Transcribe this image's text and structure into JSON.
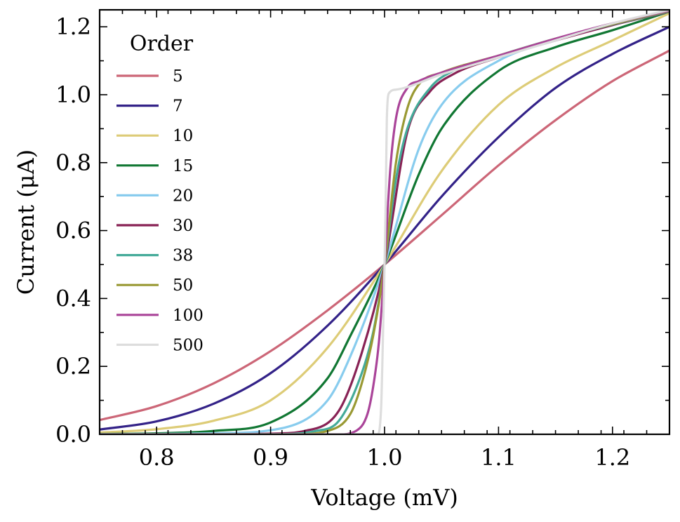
{
  "chart_data": {
    "type": "line",
    "title": "",
    "xlabel": "Voltage (mV)",
    "ylabel": "Current (μA)",
    "xlim": [
      0.75,
      1.25
    ],
    "ylim": [
      0.0,
      1.25
    ],
    "x_ticks": [
      0.8,
      0.9,
      1.0,
      1.1,
      1.2
    ],
    "x_tick_labels": [
      "0.8",
      "0.9",
      "1.0",
      "1.1",
      "1.2"
    ],
    "y_ticks": [
      0.0,
      0.2,
      0.4,
      0.6,
      0.8,
      1.0,
      1.2
    ],
    "y_tick_labels": [
      "0.0",
      "0.2",
      "0.4",
      "0.6",
      "0.8",
      "1.0",
      "1.2"
    ],
    "grid": false,
    "legend": {
      "title": "Order",
      "placement": "top-left"
    },
    "series": [
      {
        "name": "5",
        "color": "#CC6677",
        "x": [
          0.75,
          0.8,
          0.85,
          0.9,
          0.95,
          1.0,
          1.05,
          1.1,
          1.15,
          1.2,
          1.25
        ],
        "y": [
          0.042,
          0.083,
          0.15,
          0.245,
          0.365,
          0.5,
          0.645,
          0.792,
          0.925,
          1.04,
          1.13
        ]
      },
      {
        "name": "7",
        "color": "#332288",
        "x": [
          0.75,
          0.8,
          0.85,
          0.9,
          0.95,
          1.0,
          1.05,
          1.1,
          1.15,
          1.2,
          1.25
        ],
        "y": [
          0.014,
          0.038,
          0.09,
          0.18,
          0.32,
          0.5,
          0.7,
          0.875,
          1.02,
          1.12,
          1.2
        ]
      },
      {
        "name": "10",
        "color": "#DDCC77",
        "x": [
          0.75,
          0.8,
          0.85,
          0.9,
          0.95,
          1.0,
          1.05,
          1.1,
          1.15,
          1.2,
          1.25
        ],
        "y": [
          0.005,
          0.015,
          0.04,
          0.1,
          0.255,
          0.5,
          0.775,
          0.97,
          1.08,
          1.16,
          1.24
        ]
      },
      {
        "name": "15",
        "color": "#117733",
        "x": [
          0.75,
          0.8,
          0.85,
          0.9,
          0.95,
          0.97,
          1.0,
          1.03,
          1.05,
          1.1,
          1.15,
          1.2,
          1.25
        ],
        "y": [
          0.001,
          0.003,
          0.01,
          0.035,
          0.165,
          0.29,
          0.5,
          0.765,
          0.9,
          1.07,
          1.14,
          1.19,
          1.245
        ]
      },
      {
        "name": "20",
        "color": "#88CCEE",
        "x": [
          0.75,
          0.8,
          0.85,
          0.9,
          0.95,
          0.97,
          1.0,
          1.03,
          1.05,
          1.1,
          1.15,
          1.2,
          1.25
        ],
        "y": [
          0.0,
          0.001,
          0.003,
          0.012,
          0.1,
          0.23,
          0.5,
          0.84,
          0.97,
          1.1,
          1.16,
          1.205,
          1.245
        ]
      },
      {
        "name": "30",
        "color": "#882255",
        "x": [
          0.75,
          0.85,
          0.9,
          0.93,
          0.96,
          0.98,
          1.0,
          1.02,
          1.04,
          1.06,
          1.1,
          1.15,
          1.2,
          1.25
        ],
        "y": [
          0.0,
          0.0,
          0.002,
          0.01,
          0.07,
          0.24,
          0.5,
          0.89,
          1.01,
          1.06,
          1.11,
          1.16,
          1.205,
          1.245
        ]
      },
      {
        "name": "38",
        "color": "#44AA99",
        "x": [
          0.75,
          0.9,
          0.94,
          0.96,
          0.98,
          0.99,
          1.0,
          1.01,
          1.02,
          1.04,
          1.06,
          1.1,
          1.15,
          1.2,
          1.25
        ],
        "y": [
          0.0,
          0.0,
          0.01,
          0.04,
          0.18,
          0.3,
          0.5,
          0.75,
          0.9,
          1.02,
          1.07,
          1.115,
          1.165,
          1.207,
          1.246
        ]
      },
      {
        "name": "50",
        "color": "#999933",
        "x": [
          0.75,
          0.92,
          0.95,
          0.97,
          0.98,
          0.99,
          1.0,
          1.01,
          1.02,
          1.03,
          1.05,
          1.1,
          1.15,
          1.2,
          1.25
        ],
        "y": [
          0.0,
          0.0,
          0.01,
          0.06,
          0.15,
          0.29,
          0.5,
          0.8,
          0.96,
          1.03,
          1.065,
          1.115,
          1.165,
          1.208,
          1.247
        ]
      },
      {
        "name": "100",
        "color": "#AA4499",
        "x": [
          0.75,
          0.96,
          0.975,
          0.985,
          0.99,
          0.995,
          1.0,
          1.005,
          1.01,
          1.02,
          1.03,
          1.05,
          1.1,
          1.15,
          1.2,
          1.25
        ],
        "y": [
          0.0,
          0.0,
          0.01,
          0.06,
          0.14,
          0.27,
          0.5,
          0.78,
          0.93,
          1.02,
          1.04,
          1.065,
          1.115,
          1.165,
          1.21,
          1.248
        ]
      },
      {
        "name": "500",
        "color": "#DDDDDD",
        "x": [
          0.75,
          0.994,
          0.997,
          0.998,
          0.999,
          1.0,
          1.001,
          1.002,
          1.004,
          1.01,
          1.05,
          1.1,
          1.15,
          1.2,
          1.25
        ],
        "y": [
          0.0,
          0.0,
          0.08,
          0.2,
          0.35,
          0.5,
          0.68,
          0.93,
          1.005,
          1.015,
          1.06,
          1.11,
          1.16,
          1.21,
          1.25
        ]
      }
    ]
  }
}
